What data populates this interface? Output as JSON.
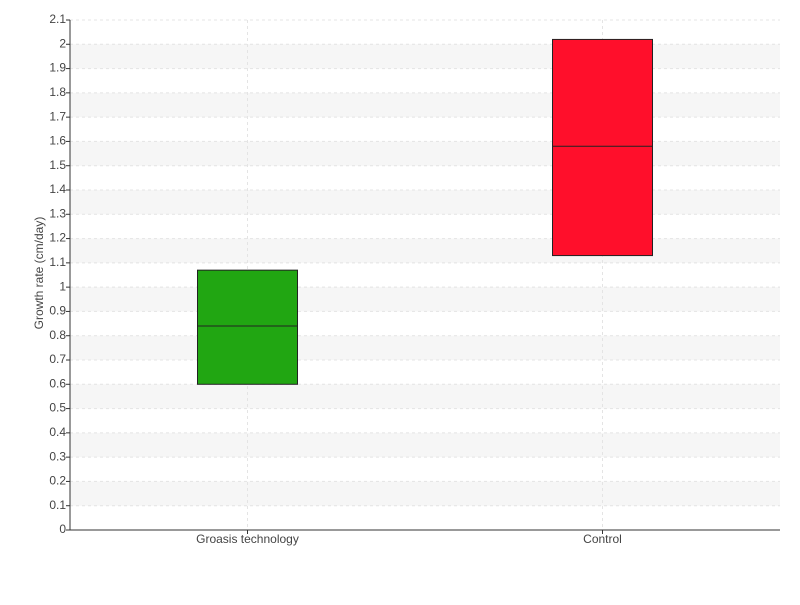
{
  "chart_data": {
    "type": "box",
    "y_label": "Growth rate (cm/day)",
    "categories": [
      "Groasis technology",
      "Control"
    ],
    "low": [
      0.6,
      1.13
    ],
    "median": [
      0.84,
      1.58
    ],
    "high": [
      1.07,
      2.02
    ],
    "colors": [
      "#21a612",
      "#ff0f2b"
    ],
    "ylim": [
      0,
      2.1
    ],
    "yticks": [
      0,
      0.1,
      0.2,
      0.3,
      0.4,
      0.5,
      0.6,
      0.7,
      0.8,
      0.9,
      1,
      1.1,
      1.2,
      1.3,
      1.4,
      1.5,
      1.6,
      1.7,
      1.8,
      1.9,
      2,
      2.1
    ],
    "grid": true
  }
}
